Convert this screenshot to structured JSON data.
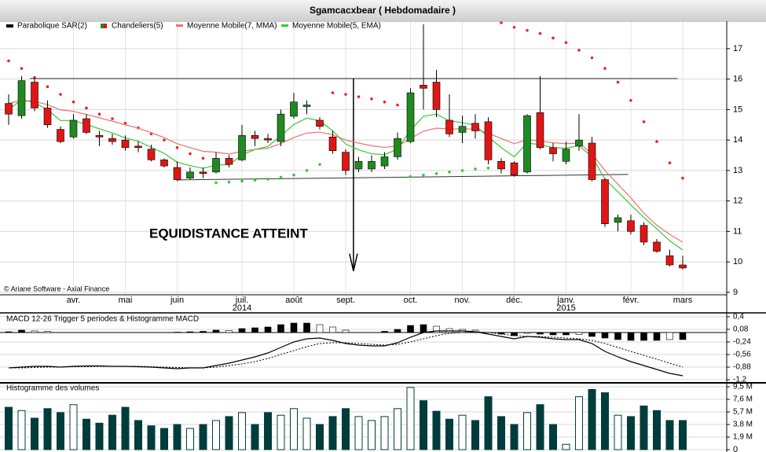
{
  "title": "Sgamcacxbear  ( Hebdomadaire )",
  "copyright": "© Ariane Software - Axial Finance",
  "annotation": "EQUIDISTANCE ATTEINT",
  "chart_data": [
    {
      "type": "candlestick",
      "categories": [
        null,
        null,
        null,
        null,
        null,
        "avr.",
        null,
        null,
        null,
        "mai",
        null,
        null,
        null,
        "juin",
        null,
        null,
        null,
        null,
        "juil.",
        null,
        null,
        null,
        "août",
        null,
        null,
        null,
        "sept.",
        null,
        null,
        null,
        null,
        "oct.",
        null,
        null,
        null,
        "nov.",
        null,
        null,
        null,
        "déc.",
        null,
        null,
        null,
        "janv.",
        null,
        null,
        null,
        null,
        "févr.",
        null,
        null,
        null,
        "mars"
      ],
      "years": [
        null,
        null,
        null,
        null,
        null,
        null,
        null,
        null,
        null,
        null,
        null,
        null,
        null,
        null,
        null,
        null,
        null,
        null,
        "2014",
        null,
        null,
        null,
        null,
        null,
        null,
        null,
        null,
        null,
        null,
        null,
        null,
        null,
        null,
        null,
        null,
        null,
        null,
        null,
        null,
        null,
        null,
        null,
        null,
        "2015",
        null,
        null,
        null,
        null,
        null,
        null,
        null,
        null,
        null
      ],
      "open": [
        15.2,
        14.8,
        15.9,
        15.05,
        14.35,
        14.1,
        14.7,
        14.15,
        14.05,
        14.0,
        13.8,
        13.7,
        13.35,
        13.1,
        12.75,
        12.95,
        12.95,
        13.4,
        13.35,
        14.15,
        14.05,
        13.95,
        14.78,
        15.1,
        14.65,
        14.1,
        13.6,
        13.05,
        13.05,
        13.15,
        13.45,
        13.95,
        15.8,
        15.9,
        14.65,
        14.25,
        14.55,
        14.6,
        13.3,
        13.25,
        12.95,
        14.9,
        13.75,
        13.3,
        13.8,
        13.9,
        12.7,
        11.3,
        11.35,
        11.2,
        10.65,
        10.2,
        9.9
      ],
      "high": [
        15.5,
        16.1,
        16.05,
        15.3,
        14.45,
        14.85,
        14.85,
        14.3,
        14.2,
        14.15,
        13.95,
        13.85,
        13.4,
        13.3,
        13.1,
        13.1,
        13.6,
        13.5,
        14.5,
        14.3,
        14.2,
        15.0,
        15.55,
        15.3,
        14.75,
        14.3,
        13.7,
        13.45,
        13.5,
        13.6,
        14.25,
        15.7,
        17.8,
        16.3,
        15.5,
        14.8,
        14.85,
        14.75,
        13.4,
        13.3,
        14.85,
        16.1,
        13.9,
        13.95,
        14.85,
        14.1,
        12.75,
        11.55,
        11.55,
        11.3,
        10.75,
        10.4,
        10.2
      ],
      "low": [
        14.5,
        14.7,
        14.95,
        14.4,
        13.9,
        14.05,
        14.2,
        13.8,
        13.85,
        13.65,
        13.6,
        13.3,
        13.1,
        12.65,
        12.7,
        12.75,
        12.9,
        13.1,
        13.3,
        13.8,
        13.9,
        13.8,
        14.7,
        14.85,
        14.35,
        13.55,
        12.85,
        12.95,
        12.95,
        13.05,
        13.35,
        13.9,
        15.0,
        14.75,
        14.1,
        13.9,
        14.05,
        13.2,
        12.9,
        12.8,
        12.9,
        13.7,
        13.3,
        13.2,
        13.65,
        12.65,
        11.15,
        11.0,
        10.9,
        10.55,
        10.3,
        9.85,
        9.75
      ],
      "close": [
        14.85,
        15.95,
        15.05,
        14.5,
        13.95,
        14.65,
        14.25,
        14.1,
        13.95,
        13.75,
        13.75,
        13.35,
        13.15,
        12.7,
        12.95,
        12.9,
        13.4,
        13.2,
        14.15,
        14.05,
        14.0,
        14.85,
        15.25,
        15.15,
        14.45,
        13.65,
        13.0,
        13.3,
        13.3,
        13.45,
        14.05,
        15.55,
        15.7,
        15.0,
        14.2,
        14.45,
        14.3,
        13.35,
        13.05,
        12.85,
        14.8,
        13.75,
        13.55,
        13.7,
        14.0,
        12.7,
        11.25,
        11.45,
        11.0,
        10.65,
        10.35,
        9.9,
        9.8
      ],
      "up_color": "#1f8a1f",
      "down_color": "#e01515",
      "sar_above_color": "#ee2222",
      "sar_below_color": "#33cc33",
      "series": [
        {
          "name": "Parabolique SAR(2)",
          "color": "#000000",
          "values": [
            16.6,
            16.35,
            16.05,
            15.75,
            15.5,
            15.25,
            15.05,
            14.85,
            14.7,
            14.55,
            14.4,
            14.2,
            14.0,
            13.75,
            13.55,
            13.4,
            12.6,
            12.62,
            12.65,
            12.68,
            12.72,
            12.78,
            12.85,
            13.0,
            13.2,
            15.55,
            15.5,
            15.42,
            15.35,
            15.25,
            15.15,
            12.8,
            12.85,
            12.9,
            12.95,
            13.0,
            13.05,
            13.08,
            17.85,
            17.7,
            17.6,
            17.5,
            17.35,
            17.2,
            16.95,
            16.7,
            16.35,
            15.9,
            15.3,
            14.6,
            13.95,
            13.25,
            12.75
          ]
        },
        {
          "name": "Chandeliers(5)",
          "color": "#1f8a1f"
        },
        {
          "name": "Moyenne Mobile(7, MMA)",
          "color": "#f07070",
          "values": [
            15.2,
            15.31,
            15.27,
            15.16,
            14.99,
            14.94,
            14.84,
            14.73,
            14.62,
            14.5,
            14.39,
            14.24,
            14.08,
            13.88,
            13.75,
            13.63,
            13.6,
            13.54,
            13.63,
            13.69,
            13.73,
            13.89,
            14.08,
            14.23,
            14.26,
            14.17,
            14.0,
            13.9,
            13.81,
            13.76,
            13.8,
            14.05,
            14.29,
            14.39,
            14.36,
            14.37,
            14.36,
            14.22,
            14.05,
            13.88,
            14.01,
            13.97,
            13.91,
            13.88,
            13.9,
            13.55,
            13.0,
            12.55,
            12.1,
            11.6,
            11.2,
            10.9,
            10.65
          ]
        },
        {
          "name": "Moyenne Mobile(5, EMA)",
          "color": "#33cc33",
          "values": [
            15.0,
            15.32,
            15.23,
            14.99,
            14.64,
            14.64,
            14.51,
            14.37,
            14.23,
            14.07,
            13.96,
            13.76,
            13.56,
            13.27,
            13.16,
            13.07,
            13.18,
            13.19,
            13.51,
            13.69,
            13.79,
            14.14,
            14.51,
            14.72,
            14.63,
            14.3,
            13.87,
            13.68,
            13.55,
            13.52,
            13.7,
            14.32,
            14.78,
            14.85,
            14.63,
            14.57,
            14.48,
            14.1,
            13.75,
            13.45,
            13.9,
            13.85,
            13.75,
            13.73,
            13.82,
            13.45,
            12.72,
            12.3,
            11.87,
            11.46,
            11.09,
            10.69,
            10.39
          ]
        }
      ],
      "lines": [
        {
          "x": [
            1.65,
            51.6
          ],
          "y": [
            16.02,
            16.02
          ]
        },
        {
          "x": [
            13,
            47.8
          ],
          "y": [
            12.69,
            12.87
          ]
        }
      ],
      "arrow": {
        "x": 26.6,
        "y": [
          16.02,
          9.7
        ]
      },
      "ylim": [
        8.92,
        17.9
      ],
      "yticks": [
        9,
        10,
        11,
        12,
        13,
        14,
        15,
        16,
        17
      ],
      "grid": true
    },
    {
      "type": "macd",
      "label": "MACD 12-26   Trigger 5 periodes & Histogramme MACD",
      "series": [
        {
          "color": "#000000",
          "dash": false,
          "values": [
            -0.9,
            -0.88,
            -0.86,
            -0.86,
            -0.88,
            -0.86,
            -0.85,
            -0.85,
            -0.86,
            -0.86,
            -0.87,
            -0.88,
            -0.9,
            -0.92,
            -0.9,
            -0.9,
            -0.84,
            -0.78,
            -0.7,
            -0.62,
            -0.52,
            -0.38,
            -0.24,
            -0.16,
            -0.14,
            -0.2,
            -0.28,
            -0.32,
            -0.34,
            -0.34,
            -0.26,
            -0.12,
            0.0,
            0.04,
            0.04,
            0.04,
            0.02,
            -0.04,
            -0.1,
            -0.16,
            -0.1,
            -0.12,
            -0.16,
            -0.18,
            -0.18,
            -0.28,
            -0.48,
            -0.62,
            -0.74,
            -0.84,
            -0.94,
            -1.04,
            -1.1
          ]
        },
        {
          "color": "#000000",
          "dash": true,
          "values": [
            -0.9,
            -0.9,
            -0.89,
            -0.88,
            -0.88,
            -0.87,
            -0.87,
            -0.86,
            -0.86,
            -0.86,
            -0.86,
            -0.87,
            -0.88,
            -0.89,
            -0.9,
            -0.9,
            -0.88,
            -0.84,
            -0.8,
            -0.74,
            -0.66,
            -0.56,
            -0.46,
            -0.36,
            -0.28,
            -0.26,
            -0.26,
            -0.28,
            -0.3,
            -0.32,
            -0.3,
            -0.24,
            -0.16,
            -0.08,
            -0.02,
            0.0,
            0.02,
            0.0,
            -0.04,
            -0.08,
            -0.1,
            -0.1,
            -0.12,
            -0.14,
            -0.16,
            -0.2,
            -0.28,
            -0.38,
            -0.48,
            -0.58,
            -0.68,
            -0.78,
            -0.88
          ]
        }
      ],
      "histogram": [
        0.02,
        0.06,
        0.04,
        0.03,
        0,
        0,
        0,
        0,
        0,
        0,
        0,
        0,
        0,
        0.01,
        0.02,
        0.03,
        0.06,
        0.05,
        0.1,
        0.12,
        0.14,
        0.2,
        0.24,
        0.24,
        0.2,
        0.14,
        0.06,
        0,
        0,
        0.03,
        0.08,
        0.18,
        0.2,
        0.16,
        0.1,
        0.08,
        0.06,
        0,
        -0.04,
        -0.08,
        -0.02,
        -0.04,
        -0.06,
        -0.06,
        -0.05,
        -0.1,
        -0.14,
        -0.18,
        -0.2,
        -0.2,
        -0.2,
        -0.18,
        -0.18
      ],
      "ylim": [
        -1.26,
        0.5
      ],
      "yticks": [
        {
          "value": 0.4,
          "label": "0,4"
        },
        {
          "value": 0.08,
          "label": "0,08"
        },
        {
          "value": -0.24,
          "label": "-0,24"
        },
        {
          "value": -0.56,
          "label": "-0,56"
        },
        {
          "value": -0.88,
          "label": "-0,88"
        },
        {
          "value": -1.2,
          "label": "-1,2"
        }
      ]
    },
    {
      "type": "volume",
      "label": "Histogramme des volumes",
      "color": "#003c3c",
      "values": [
        6.4,
        5.9,
        4.75,
        6.2,
        5.6,
        6.8,
        4.6,
        4.0,
        5.2,
        6.4,
        4.4,
        3.6,
        3.2,
        3.8,
        3.2,
        3.8,
        4.4,
        5.0,
        5.6,
        3.8,
        5.6,
        5.2,
        6.2,
        4.75,
        3.8,
        5.0,
        6.2,
        5.0,
        4.4,
        5.0,
        6.2,
        9.4,
        7.4,
        5.8,
        4.6,
        5.2,
        4.4,
        8.0,
        5.0,
        3.8,
        5.6,
        6.8,
        3.8,
        0.8,
        8.0,
        9.1,
        8.6,
        5.2,
        5.0,
        6.6,
        5.9,
        4.4,
        4.4
      ],
      "ylim": [
        -0.36,
        9.98
      ],
      "yticks": [
        {
          "value": 9.5,
          "label": "9,5 M"
        },
        {
          "value": 7.6,
          "label": "7,6 M"
        },
        {
          "value": 5.7,
          "label": "5,7 M"
        },
        {
          "value": 3.8,
          "label": "3,8 M"
        },
        {
          "value": 1.9,
          "label": "1,9 M"
        },
        0
      ]
    }
  ]
}
